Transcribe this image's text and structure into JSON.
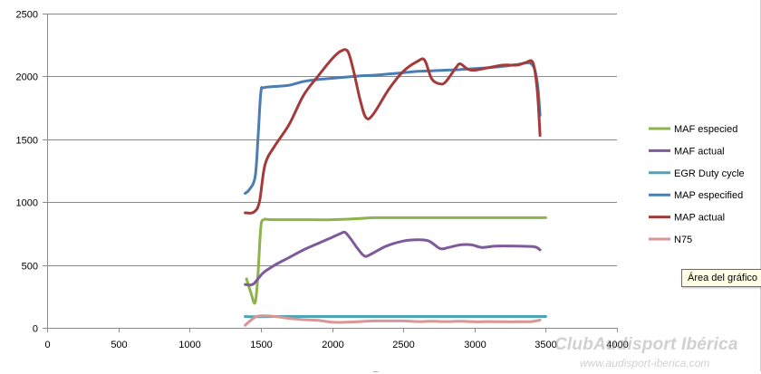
{
  "chart_data": {
    "type": "line",
    "title": "",
    "xlabel": "",
    "ylabel": "",
    "xlim": [
      0,
      4000
    ],
    "ylim": [
      0,
      2500
    ],
    "x_ticks": [
      0,
      500,
      1000,
      1500,
      2000,
      2500,
      3000,
      3500,
      4000
    ],
    "y_ticks": [
      0,
      500,
      1000,
      1500,
      2000,
      2500
    ],
    "grid": "horizontal",
    "legend_position": "right",
    "series": [
      {
        "name": "MAF especied",
        "color": "#8db34a",
        "points": [
          [
            1400,
            390
          ],
          [
            1430,
            280
          ],
          [
            1460,
            200
          ],
          [
            1480,
            420
          ],
          [
            1500,
            800
          ],
          [
            1520,
            860
          ],
          [
            1550,
            862
          ],
          [
            1600,
            860
          ],
          [
            1800,
            860
          ],
          [
            2000,
            860
          ],
          [
            2200,
            870
          ],
          [
            2300,
            876
          ],
          [
            2500,
            876
          ],
          [
            2800,
            876
          ],
          [
            3100,
            876
          ],
          [
            3400,
            876
          ],
          [
            3500,
            876
          ]
        ]
      },
      {
        "name": "MAF actual",
        "color": "#7e5a9b",
        "points": [
          [
            1390,
            345
          ],
          [
            1420,
            340
          ],
          [
            1450,
            350
          ],
          [
            1480,
            390
          ],
          [
            1520,
            440
          ],
          [
            1600,
            500
          ],
          [
            1700,
            560
          ],
          [
            1800,
            620
          ],
          [
            1900,
            670
          ],
          [
            2000,
            720
          ],
          [
            2060,
            750
          ],
          [
            2090,
            760
          ],
          [
            2130,
            710
          ],
          [
            2180,
            630
          ],
          [
            2230,
            570
          ],
          [
            2280,
            590
          ],
          [
            2380,
            650
          ],
          [
            2500,
            690
          ],
          [
            2600,
            700
          ],
          [
            2680,
            690
          ],
          [
            2760,
            630
          ],
          [
            2820,
            640
          ],
          [
            2900,
            660
          ],
          [
            2980,
            660
          ],
          [
            3050,
            640
          ],
          [
            3150,
            650
          ],
          [
            3300,
            650
          ],
          [
            3420,
            645
          ],
          [
            3460,
            620
          ]
        ]
      },
      {
        "name": "EGR Duty cycle",
        "color": "#4aa6b8",
        "points": [
          [
            1390,
            90
          ],
          [
            1450,
            88
          ],
          [
            1600,
            90
          ],
          [
            2000,
            90
          ],
          [
            2500,
            90
          ],
          [
            3000,
            90
          ],
          [
            3500,
            90
          ]
        ]
      },
      {
        "name": "MAP especified",
        "color": "#4a7eb3",
        "points": [
          [
            1390,
            1070
          ],
          [
            1420,
            1100
          ],
          [
            1460,
            1200
          ],
          [
            1480,
            1500
          ],
          [
            1500,
            1870
          ],
          [
            1520,
            1910
          ],
          [
            1600,
            1920
          ],
          [
            1700,
            1930
          ],
          [
            1800,
            1960
          ],
          [
            1900,
            1975
          ],
          [
            2000,
            1985
          ],
          [
            2100,
            1995
          ],
          [
            2200,
            2005
          ],
          [
            2300,
            2010
          ],
          [
            2400,
            2020
          ],
          [
            2500,
            2030
          ],
          [
            2600,
            2040
          ],
          [
            2700,
            2045
          ],
          [
            2800,
            2050
          ],
          [
            2900,
            2055
          ],
          [
            3000,
            2062
          ],
          [
            3100,
            2070
          ],
          [
            3200,
            2080
          ],
          [
            3300,
            2095
          ],
          [
            3400,
            2100
          ],
          [
            3440,
            1960
          ],
          [
            3460,
            1690
          ]
        ]
      },
      {
        "name": "MAP actual",
        "color": "#a33b3a",
        "points": [
          [
            1390,
            915
          ],
          [
            1450,
            920
          ],
          [
            1490,
            1000
          ],
          [
            1530,
            1300
          ],
          [
            1600,
            1450
          ],
          [
            1700,
            1620
          ],
          [
            1800,
            1850
          ],
          [
            1900,
            2000
          ],
          [
            2000,
            2140
          ],
          [
            2060,
            2200
          ],
          [
            2110,
            2200
          ],
          [
            2150,
            2050
          ],
          [
            2200,
            1800
          ],
          [
            2240,
            1670
          ],
          [
            2290,
            1700
          ],
          [
            2400,
            1900
          ],
          [
            2500,
            2040
          ],
          [
            2600,
            2120
          ],
          [
            2650,
            2130
          ],
          [
            2700,
            1980
          ],
          [
            2760,
            1940
          ],
          [
            2800,
            1960
          ],
          [
            2870,
            2070
          ],
          [
            2900,
            2100
          ],
          [
            2950,
            2060
          ],
          [
            3000,
            2050
          ],
          [
            3100,
            2070
          ],
          [
            3200,
            2090
          ],
          [
            3300,
            2090
          ],
          [
            3360,
            2110
          ],
          [
            3410,
            2110
          ],
          [
            3440,
            1900
          ],
          [
            3460,
            1530
          ]
        ]
      },
      {
        "name": "N75",
        "color": "#d99694",
        "points": [
          [
            1390,
            20
          ],
          [
            1430,
            60
          ],
          [
            1460,
            85
          ],
          [
            1500,
            95
          ],
          [
            1600,
            90
          ],
          [
            1700,
            75
          ],
          [
            1800,
            65
          ],
          [
            1900,
            60
          ],
          [
            2000,
            45
          ],
          [
            2100,
            45
          ],
          [
            2200,
            50
          ],
          [
            2300,
            55
          ],
          [
            2400,
            55
          ],
          [
            2500,
            55
          ],
          [
            2600,
            50
          ],
          [
            2700,
            52
          ],
          [
            2800,
            50
          ],
          [
            2900,
            52
          ],
          [
            3000,
            48
          ],
          [
            3100,
            50
          ],
          [
            3200,
            48
          ],
          [
            3300,
            48
          ],
          [
            3400,
            50
          ],
          [
            3460,
            62
          ]
        ]
      }
    ]
  },
  "tooltip": "Área del gráfico",
  "watermark": "ClubAudisport Ibérica",
  "watermark_url": "www.audisport-iberica.com",
  "resize_handle": "....."
}
